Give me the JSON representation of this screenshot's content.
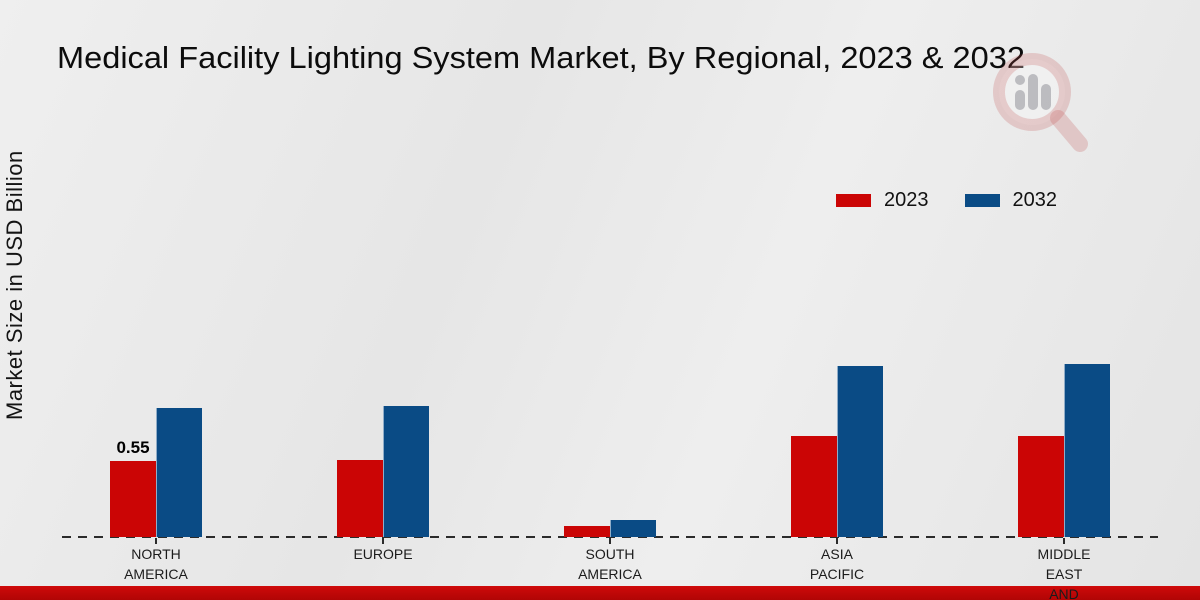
{
  "title": "Medical Facility Lighting System Market, By Regional, 2023 & 2032",
  "y_axis_label": "Market Size in USD Billion",
  "legend": {
    "position": "upper right",
    "items": [
      {
        "label": "2023",
        "color": "#cb0505"
      },
      {
        "label": "2032",
        "color": "#0a4b85"
      }
    ]
  },
  "footer": {
    "band_color_top": "#cf0a0a",
    "band_color_bottom": "#b00505"
  },
  "watermark_icon": "magnifier-bar-chart-logo",
  "chart_data": {
    "type": "bar",
    "categories": [
      "NORTH AMERICA",
      "EUROPE",
      "SOUTH AMERICA",
      "ASIA PACIFIC",
      "MIDDLE EAST AND"
    ],
    "categories_display": [
      [
        "NORTH",
        "AMERICA"
      ],
      [
        "EUROPE"
      ],
      [
        "SOUTH",
        "AMERICA"
      ],
      [
        "ASIA",
        "PACIFIC"
      ],
      [
        "MIDDLE",
        "EAST",
        "AND"
      ]
    ],
    "series": [
      {
        "name": "2023",
        "color": "#cb0505",
        "values": [
          0.55,
          0.56,
          0.08,
          0.73,
          0.73
        ]
      },
      {
        "name": "2032",
        "color": "#0a4b85",
        "values": [
          0.93,
          0.95,
          0.12,
          1.24,
          1.25
        ]
      }
    ],
    "data_labels": [
      {
        "category_index": 0,
        "series_index": 0,
        "text": "0.55"
      }
    ],
    "title": "Medical Facility Lighting System Market, By Regional, 2023 & 2032",
    "xlabel": "",
    "ylabel": "Market Size in USD Billion",
    "ylim": [
      0,
      1.5
    ],
    "grid": false,
    "baseline_style": "dashed",
    "legend_position": "upper right"
  }
}
